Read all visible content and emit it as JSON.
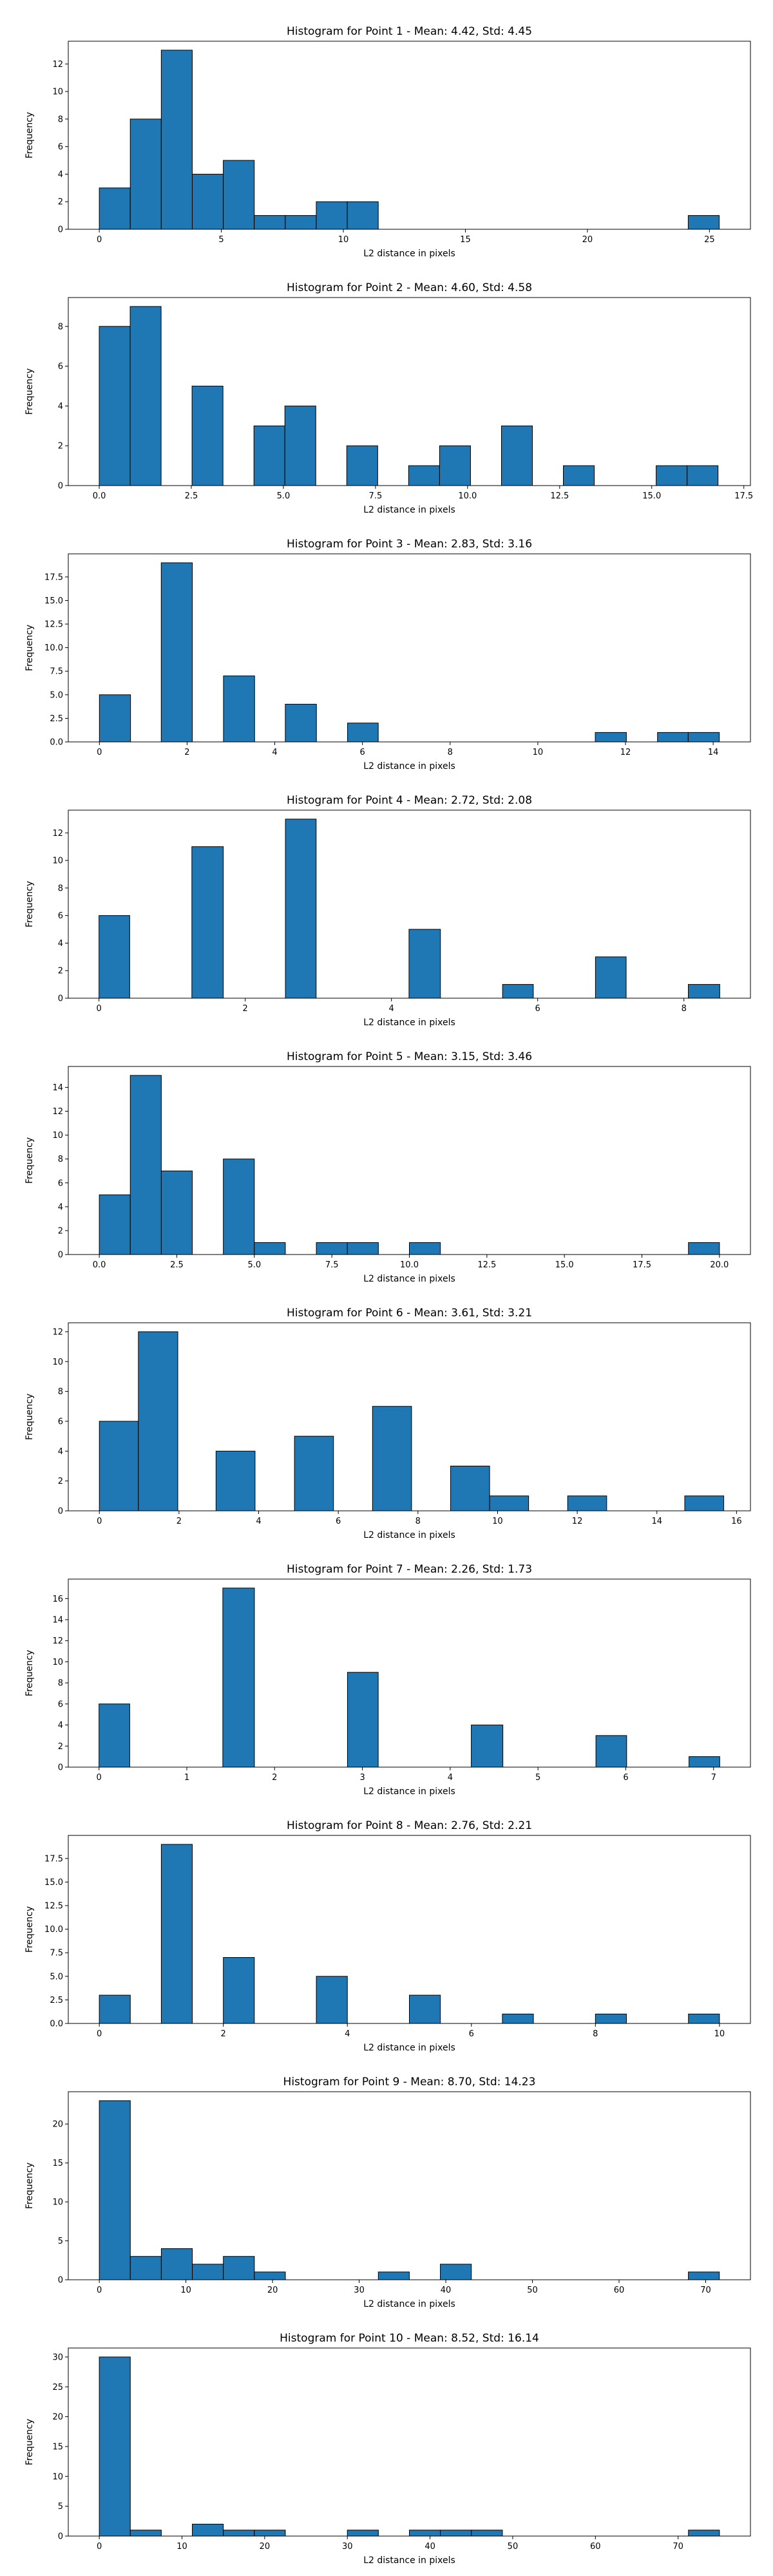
{
  "bar_color": "#1f77b4",
  "edge_color": "#000000",
  "chart_data": [
    {
      "type": "bar",
      "title": "Histogram for Point 1 - Mean: 4.42, Std: 4.45",
      "xlabel": "L2 distance in pixels",
      "ylabel": "Frequency",
      "xlim": [
        -1.27,
        26.68
      ],
      "ylim": [
        0,
        13.65
      ],
      "xticks": [
        0,
        5,
        10,
        15,
        20,
        25
      ],
      "xtick_labels": [
        "0",
        "5",
        "10",
        "15",
        "20",
        "25"
      ],
      "yticks": [
        0,
        2,
        4,
        6,
        8,
        10,
        12
      ],
      "ytick_labels": [
        "0",
        "2",
        "4",
        "6",
        "8",
        "10",
        "12"
      ],
      "bins": [
        {
          "x0": 0.0,
          "x1": 1.27,
          "count": 3
        },
        {
          "x0": 1.27,
          "x1": 2.54,
          "count": 8
        },
        {
          "x0": 2.54,
          "x1": 3.81,
          "count": 13
        },
        {
          "x0": 3.81,
          "x1": 5.08,
          "count": 4
        },
        {
          "x0": 5.08,
          "x1": 6.35,
          "count": 5
        },
        {
          "x0": 6.35,
          "x1": 7.62,
          "count": 1
        },
        {
          "x0": 7.62,
          "x1": 8.89,
          "count": 1
        },
        {
          "x0": 8.89,
          "x1": 10.16,
          "count": 2
        },
        {
          "x0": 10.16,
          "x1": 11.43,
          "count": 2
        },
        {
          "x0": 24.13,
          "x1": 25.4,
          "count": 1
        }
      ]
    },
    {
      "type": "bar",
      "title": "Histogram for Point 2 - Mean: 4.60, Std: 4.58",
      "xlabel": "L2 distance in pixels",
      "ylabel": "Frequency",
      "xlim": [
        -0.84,
        17.68
      ],
      "ylim": [
        0,
        9.45
      ],
      "xticks": [
        0,
        2.5,
        5,
        7.5,
        10,
        12.5,
        15,
        17.5
      ],
      "xtick_labels": [
        "0.0",
        "2.5",
        "5.0",
        "7.5",
        "10.0",
        "12.5",
        "15.0",
        "17.5"
      ],
      "yticks": [
        0,
        2,
        4,
        6,
        8
      ],
      "ytick_labels": [
        "0",
        "2",
        "4",
        "6",
        "8"
      ],
      "bins": [
        {
          "x0": 0.0,
          "x1": 0.84,
          "count": 8
        },
        {
          "x0": 0.84,
          "x1": 1.68,
          "count": 9
        },
        {
          "x0": 2.52,
          "x1": 3.36,
          "count": 5
        },
        {
          "x0": 4.2,
          "x1": 5.04,
          "count": 3
        },
        {
          "x0": 5.04,
          "x1": 5.88,
          "count": 4
        },
        {
          "x0": 6.72,
          "x1": 7.56,
          "count": 2
        },
        {
          "x0": 8.4,
          "x1": 9.24,
          "count": 1
        },
        {
          "x0": 9.24,
          "x1": 10.08,
          "count": 2
        },
        {
          "x0": 10.92,
          "x1": 11.76,
          "count": 3
        },
        {
          "x0": 12.6,
          "x1": 13.44,
          "count": 1
        },
        {
          "x0": 15.12,
          "x1": 15.96,
          "count": 1
        },
        {
          "x0": 15.96,
          "x1": 16.8,
          "count": 1
        }
      ]
    },
    {
      "type": "bar",
      "title": "Histogram for Point 3 - Mean: 2.83, Std: 3.16",
      "xlabel": "L2 distance in pixels",
      "ylabel": "Frequency",
      "xlim": [
        -0.71,
        14.85
      ],
      "ylim": [
        0,
        19.95
      ],
      "xticks": [
        0,
        2,
        4,
        6,
        8,
        10,
        12,
        14
      ],
      "xtick_labels": [
        "0",
        "2",
        "4",
        "6",
        "8",
        "10",
        "12",
        "14"
      ],
      "yticks": [
        0,
        2.5,
        5,
        7.5,
        10,
        12.5,
        15,
        17.5
      ],
      "ytick_labels": [
        "0.0",
        "2.5",
        "5.0",
        "7.5",
        "10.0",
        "12.5",
        "15.0",
        "17.5"
      ],
      "bins": [
        {
          "x0": 0.0,
          "x1": 0.71,
          "count": 5
        },
        {
          "x0": 1.41,
          "x1": 2.12,
          "count": 19
        },
        {
          "x0": 2.83,
          "x1": 3.54,
          "count": 7
        },
        {
          "x0": 4.24,
          "x1": 4.95,
          "count": 4
        },
        {
          "x0": 5.66,
          "x1": 6.36,
          "count": 2
        },
        {
          "x0": 11.31,
          "x1": 12.02,
          "count": 1
        },
        {
          "x0": 12.73,
          "x1": 13.43,
          "count": 1
        },
        {
          "x0": 13.43,
          "x1": 14.14,
          "count": 1
        }
      ]
    },
    {
      "type": "bar",
      "title": "Histogram for Point 4 - Mean: 2.72, Std: 2.08",
      "xlabel": "L2 distance in pixels",
      "ylabel": "Frequency",
      "xlim": [
        -0.42,
        8.91
      ],
      "ylim": [
        0,
        13.65
      ],
      "xticks": [
        0,
        2,
        4,
        6,
        8
      ],
      "xtick_labels": [
        "0",
        "2",
        "4",
        "6",
        "8"
      ],
      "yticks": [
        0,
        2,
        4,
        6,
        8,
        10,
        12
      ],
      "ytick_labels": [
        "0",
        "2",
        "4",
        "6",
        "8",
        "10",
        "12"
      ],
      "bins": [
        {
          "x0": 0.0,
          "x1": 0.42,
          "count": 6
        },
        {
          "x0": 1.27,
          "x1": 1.7,
          "count": 11
        },
        {
          "x0": 2.55,
          "x1": 2.97,
          "count": 13
        },
        {
          "x0": 4.24,
          "x1": 4.67,
          "count": 5
        },
        {
          "x0": 5.52,
          "x1": 5.94,
          "count": 1
        },
        {
          "x0": 6.79,
          "x1": 7.21,
          "count": 3
        },
        {
          "x0": 8.06,
          "x1": 8.49,
          "count": 1
        }
      ]
    },
    {
      "type": "bar",
      "title": "Histogram for Point 5 - Mean: 3.15, Std: 3.46",
      "xlabel": "L2 distance in pixels",
      "ylabel": "Frequency",
      "xlim": [
        -1.0,
        21.0
      ],
      "ylim": [
        0,
        15.75
      ],
      "xticks": [
        0,
        2.5,
        5,
        7.5,
        10,
        12.5,
        15,
        17.5,
        20
      ],
      "xtick_labels": [
        "0.0",
        "2.5",
        "5.0",
        "7.5",
        "10.0",
        "12.5",
        "15.0",
        "17.5",
        "20.0"
      ],
      "yticks": [
        0,
        2,
        4,
        6,
        8,
        10,
        12,
        14
      ],
      "ytick_labels": [
        "0",
        "2",
        "4",
        "6",
        "8",
        "10",
        "12",
        "14"
      ],
      "bins": [
        {
          "x0": 0.0,
          "x1": 1.0,
          "count": 5
        },
        {
          "x0": 1.0,
          "x1": 2.0,
          "count": 15
        },
        {
          "x0": 2.0,
          "x1": 3.0,
          "count": 7
        },
        {
          "x0": 4.0,
          "x1": 5.0,
          "count": 8
        },
        {
          "x0": 5.0,
          "x1": 6.0,
          "count": 1
        },
        {
          "x0": 7.0,
          "x1": 8.0,
          "count": 1
        },
        {
          "x0": 8.0,
          "x1": 9.0,
          "count": 1
        },
        {
          "x0": 10.0,
          "x1": 11.0,
          "count": 1
        },
        {
          "x0": 19.0,
          "x1": 20.0,
          "count": 1
        }
      ]
    },
    {
      "type": "bar",
      "title": "Histogram for Point 6 - Mean: 3.61, Std: 3.21",
      "xlabel": "L2 distance in pixels",
      "ylabel": "Frequency",
      "xlim": [
        -0.78,
        16.35
      ],
      "ylim": [
        0,
        12.6
      ],
      "xticks": [
        0,
        2,
        4,
        6,
        8,
        10,
        12,
        14,
        16
      ],
      "xtick_labels": [
        "0",
        "2",
        "4",
        "6",
        "8",
        "10",
        "12",
        "14",
        "16"
      ],
      "yticks": [
        0,
        2,
        4,
        6,
        8,
        10,
        12
      ],
      "ytick_labels": [
        "0",
        "2",
        "4",
        "6",
        "8",
        "10",
        "12"
      ],
      "bins": [
        {
          "x0": 0.0,
          "x1": 0.98,
          "count": 6
        },
        {
          "x0": 0.98,
          "x1": 1.97,
          "count": 12
        },
        {
          "x0": 2.93,
          "x1": 3.91,
          "count": 4
        },
        {
          "x0": 4.9,
          "x1": 5.88,
          "count": 5
        },
        {
          "x0": 6.86,
          "x1": 7.84,
          "count": 7
        },
        {
          "x0": 8.82,
          "x1": 9.8,
          "count": 3
        },
        {
          "x0": 9.8,
          "x1": 10.78,
          "count": 1
        },
        {
          "x0": 11.76,
          "x1": 12.74,
          "count": 1
        },
        {
          "x0": 14.7,
          "x1": 15.68,
          "count": 1
        }
      ]
    },
    {
      "type": "bar",
      "title": "Histogram for Point 7 - Mean: 2.26, Std: 1.73",
      "xlabel": "L2 distance in pixels",
      "ylabel": "Frequency",
      "xlim": [
        -0.35,
        7.42
      ],
      "ylim": [
        0,
        17.85
      ],
      "xticks": [
        0,
        1,
        2,
        3,
        4,
        5,
        6,
        7
      ],
      "xtick_labels": [
        "0",
        "1",
        "2",
        "3",
        "4",
        "5",
        "6",
        "7"
      ],
      "yticks": [
        0,
        2,
        4,
        6,
        8,
        10,
        12,
        14,
        16
      ],
      "ytick_labels": [
        "0",
        "2",
        "4",
        "6",
        "8",
        "10",
        "12",
        "14",
        "16"
      ],
      "bins": [
        {
          "x0": 0.0,
          "x1": 0.35,
          "count": 6
        },
        {
          "x0": 1.41,
          "x1": 1.77,
          "count": 17
        },
        {
          "x0": 2.83,
          "x1": 3.18,
          "count": 9
        },
        {
          "x0": 4.24,
          "x1": 4.6,
          "count": 4
        },
        {
          "x0": 5.66,
          "x1": 6.01,
          "count": 3
        },
        {
          "x0": 6.72,
          "x1": 7.07,
          "count": 1
        }
      ]
    },
    {
      "type": "bar",
      "title": "Histogram for Point 8 - Mean: 2.76, Std: 2.21",
      "xlabel": "L2 distance in pixels",
      "ylabel": "Frequency",
      "xlim": [
        -0.5,
        10.5
      ],
      "ylim": [
        0,
        19.95
      ],
      "xticks": [
        0,
        2,
        4,
        6,
        8,
        10
      ],
      "xtick_labels": [
        "0",
        "2",
        "4",
        "6",
        "8",
        "10"
      ],
      "yticks": [
        0,
        2.5,
        5,
        7.5,
        10,
        12.5,
        15,
        17.5
      ],
      "ytick_labels": [
        "0.0",
        "2.5",
        "5.0",
        "7.5",
        "10.0",
        "12.5",
        "15.0",
        "17.5"
      ],
      "bins": [
        {
          "x0": 0.0,
          "x1": 0.5,
          "count": 3
        },
        {
          "x0": 1.0,
          "x1": 1.5,
          "count": 19
        },
        {
          "x0": 2.0,
          "x1": 2.5,
          "count": 7
        },
        {
          "x0": 3.5,
          "x1": 4.0,
          "count": 5
        },
        {
          "x0": 5.0,
          "x1": 5.5,
          "count": 3
        },
        {
          "x0": 6.5,
          "x1": 7.0,
          "count": 1
        },
        {
          "x0": 8.0,
          "x1": 8.5,
          "count": 1
        },
        {
          "x0": 9.5,
          "x1": 10.0,
          "count": 1
        }
      ]
    },
    {
      "type": "bar",
      "title": "Histogram for Point 9 - Mean: 8.70, Std: 14.23",
      "xlabel": "L2 distance in pixels",
      "ylabel": "Frequency",
      "xlim": [
        -3.58,
        75.17
      ],
      "ylim": [
        0,
        24.15
      ],
      "xticks": [
        0,
        10,
        20,
        30,
        40,
        50,
        60,
        70
      ],
      "xtick_labels": [
        "0",
        "10",
        "20",
        "30",
        "40",
        "50",
        "60",
        "70"
      ],
      "yticks": [
        0,
        5,
        10,
        15,
        20
      ],
      "ytick_labels": [
        "0",
        "5",
        "10",
        "15",
        "20"
      ],
      "bins": [
        {
          "x0": 0.0,
          "x1": 3.58,
          "count": 23
        },
        {
          "x0": 3.58,
          "x1": 7.16,
          "count": 3
        },
        {
          "x0": 7.16,
          "x1": 10.74,
          "count": 4
        },
        {
          "x0": 10.74,
          "x1": 14.32,
          "count": 2
        },
        {
          "x0": 14.32,
          "x1": 17.9,
          "count": 3
        },
        {
          "x0": 17.9,
          "x1": 21.48,
          "count": 1
        },
        {
          "x0": 32.21,
          "x1": 35.79,
          "count": 1
        },
        {
          "x0": 39.37,
          "x1": 42.95,
          "count": 2
        },
        {
          "x0": 68.0,
          "x1": 71.58,
          "count": 1
        }
      ]
    },
    {
      "type": "bar",
      "title": "Histogram for Point 10 - Mean: 8.52, Std: 16.14",
      "xlabel": "L2 distance in pixels",
      "ylabel": "Frequency",
      "xlim": [
        -3.75,
        78.75
      ],
      "ylim": [
        0,
        31.5
      ],
      "xticks": [
        0,
        10,
        20,
        30,
        40,
        50,
        60,
        70
      ],
      "xtick_labels": [
        "0",
        "10",
        "20",
        "30",
        "40",
        "50",
        "60",
        "70"
      ],
      "yticks": [
        0,
        5,
        10,
        15,
        20,
        25,
        30
      ],
      "ytick_labels": [
        "0",
        "5",
        "10",
        "15",
        "20",
        "25",
        "30"
      ],
      "bins": [
        {
          "x0": 0.0,
          "x1": 3.75,
          "count": 30
        },
        {
          "x0": 3.75,
          "x1": 7.5,
          "count": 1
        },
        {
          "x0": 11.25,
          "x1": 15.0,
          "count": 2
        },
        {
          "x0": 15.0,
          "x1": 18.75,
          "count": 1
        },
        {
          "x0": 18.75,
          "x1": 22.5,
          "count": 1
        },
        {
          "x0": 30.0,
          "x1": 33.75,
          "count": 1
        },
        {
          "x0": 37.5,
          "x1": 41.25,
          "count": 1
        },
        {
          "x0": 41.25,
          "x1": 45.0,
          "count": 1
        },
        {
          "x0": 45.0,
          "x1": 48.75,
          "count": 1
        },
        {
          "x0": 71.25,
          "x1": 75.0,
          "count": 1
        }
      ]
    }
  ]
}
